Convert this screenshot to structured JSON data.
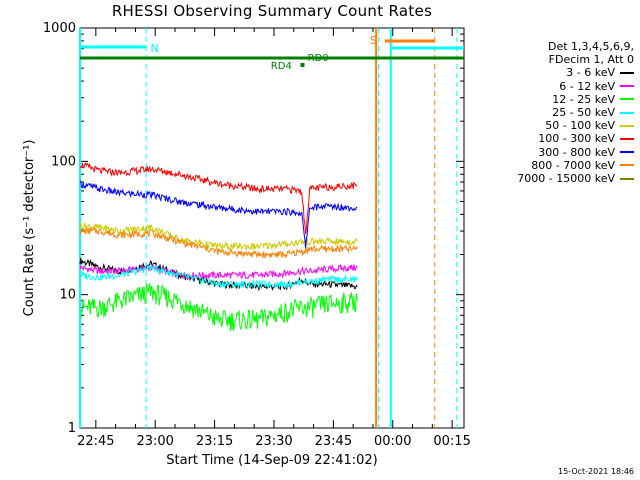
{
  "title": "RHESSI Observing Summary Count Rates",
  "footer": "15-Oct-2021 18:46",
  "legend": {
    "header_line1": "Det 1,3,4,5,6,9,",
    "header_line2": "FDecim 1, Att 0"
  },
  "annotations": {
    "N": "N",
    "S": "S",
    "RD0": "RD0",
    "RD4": "RD4"
  },
  "chart_data": {
    "type": "line",
    "title": "RHESSI Observing Summary Count Rates",
    "xlabel": "Start Time (14-Sep-09 22:41:02)",
    "ylabel": "Count Rate (s⁻¹ detector⁻¹)",
    "yscale": "log",
    "ylim": [
      1,
      1000
    ],
    "x_unit": "minutes after 22:41:02",
    "xlim": [
      0,
      97
    ],
    "x_ticks": [
      {
        "value": 4,
        "label": "22:45"
      },
      {
        "value": 19,
        "label": "23:00"
      },
      {
        "value": 34,
        "label": "23:15"
      },
      {
        "value": 49,
        "label": "23:30"
      },
      {
        "value": 64,
        "label": "23:45"
      },
      {
        "value": 79,
        "label": "00:00"
      },
      {
        "value": 94,
        "label": "00:15"
      }
    ],
    "y_ticks": [
      {
        "value": 1,
        "label": "1"
      },
      {
        "value": 10,
        "label": "10"
      },
      {
        "value": 100,
        "label": "100"
      },
      {
        "value": 1000,
        "label": "1000"
      }
    ],
    "legend_position": "right",
    "series": [
      {
        "name": "3 - 6 keV",
        "color": "#000000",
        "x": [
          0,
          5,
          10,
          18,
          25,
          35,
          45,
          52,
          56,
          58,
          62,
          70
        ],
        "y": [
          18,
          16,
          15,
          17,
          14,
          12,
          11.5,
          11.5,
          13,
          12,
          12,
          11.5
        ]
      },
      {
        "name": "6 - 12 keV",
        "color": "#ff00ff",
        "x": [
          0,
          5,
          10,
          18,
          25,
          35,
          45,
          52,
          56,
          58,
          62,
          70
        ],
        "y": [
          16,
          15,
          15,
          16,
          14,
          14,
          14,
          14.5,
          15,
          15,
          15.5,
          16
        ]
      },
      {
        "name": "12 - 25 keV",
        "color": "#00ff00",
        "x": [
          0,
          5,
          10,
          18,
          25,
          35,
          45,
          52,
          56,
          58,
          62,
          70
        ],
        "y": [
          8,
          8,
          9,
          10.5,
          9,
          6.5,
          6.5,
          7.5,
          8,
          8,
          8.5,
          9
        ]
      },
      {
        "name": "25 - 50 keV",
        "color": "#00ffff",
        "x": [
          0,
          5,
          10,
          18,
          25,
          35,
          45,
          52,
          56,
          58,
          62,
          70
        ],
        "y": [
          14,
          13.5,
          14,
          16,
          14,
          12,
          12,
          12,
          12.5,
          12.5,
          13,
          13
        ]
      },
      {
        "name": "50 - 100 keV",
        "color": "#cccc00",
        "x": [
          0,
          5,
          10,
          18,
          25,
          35,
          45,
          52,
          56,
          58,
          62,
          70
        ],
        "y": [
          33,
          32,
          30,
          32,
          26,
          23,
          23,
          24,
          25,
          25,
          25,
          25
        ]
      },
      {
        "name": "100 - 300 keV",
        "color": "#ff0000",
        "x": [
          0,
          5,
          10,
          18,
          25,
          35,
          45,
          52,
          56,
          57,
          58,
          62,
          70
        ],
        "y": [
          95,
          85,
          82,
          88,
          80,
          68,
          62,
          62,
          60,
          28,
          62,
          64,
          66
        ]
      },
      {
        "name": "300 - 800 keV",
        "color": "#0000ff",
        "x": [
          0,
          5,
          10,
          18,
          25,
          35,
          45,
          52,
          56,
          57,
          58,
          62,
          70
        ],
        "y": [
          68,
          62,
          58,
          56,
          50,
          45,
          42,
          42,
          41,
          22,
          45,
          46,
          45
        ]
      },
      {
        "name": "800 - 7000 keV",
        "color": "#ff8000",
        "x": [
          0,
          5,
          10,
          18,
          25,
          35,
          45,
          52,
          56,
          58,
          62,
          70
        ],
        "y": [
          30,
          30,
          28,
          29,
          25,
          21,
          20,
          20,
          21,
          22,
          22,
          22
        ]
      },
      {
        "name": "7000 - 15000 keV",
        "color": "#808000",
        "x": [],
        "y": []
      }
    ]
  }
}
